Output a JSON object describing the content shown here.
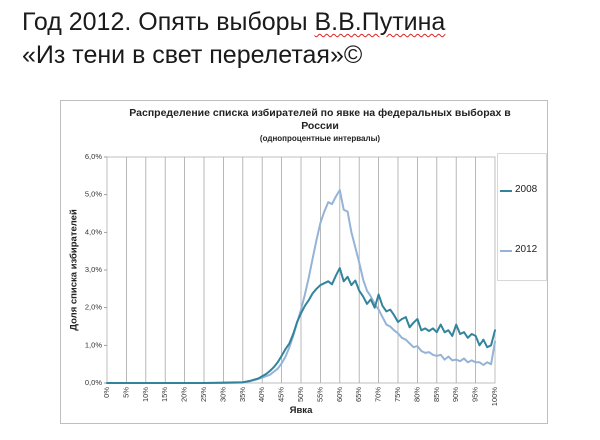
{
  "slide": {
    "title_line1_prefix": "Год 2012. Опять выборы ",
    "title_line1_name": "В.В.Путина",
    "title_line2": "«Из тени в свет перелетая»©"
  },
  "chart_data": {
    "type": "line",
    "title": "Распределение списка избирателей по явке на федеральных выборах в России",
    "subtitle": "(однопроцентные интервалы)",
    "xlabel": "Явка",
    "ylabel": "Доля списка избирателей",
    "xlim": [
      0,
      100
    ],
    "ylim": [
      0,
      6
    ],
    "x_ticks": [
      "0%",
      "5%",
      "10%",
      "15%",
      "20%",
      "25%",
      "30%",
      "35%",
      "40%",
      "45%",
      "50%",
      "55%",
      "60%",
      "65%",
      "70%",
      "75%",
      "80%",
      "85%",
      "90%",
      "95%",
      "100%"
    ],
    "y_ticks": [
      "0,0%",
      "1,0%",
      "2,0%",
      "3,0%",
      "4,0%",
      "5,0%",
      "6,0%"
    ],
    "grid": "vertical",
    "legend_position": "right",
    "series": [
      {
        "name": "2008",
        "color": "#31849b",
        "x": [
          0,
          5,
          10,
          15,
          20,
          25,
          30,
          35,
          36,
          37,
          38,
          39,
          40,
          41,
          42,
          43,
          44,
          45,
          46,
          47,
          48,
          49,
          50,
          51,
          52,
          53,
          54,
          55,
          56,
          57,
          58,
          59,
          60,
          61,
          62,
          63,
          64,
          65,
          66,
          67,
          68,
          69,
          70,
          71,
          72,
          73,
          74,
          75,
          76,
          77,
          78,
          79,
          80,
          81,
          82,
          83,
          84,
          85,
          86,
          87,
          88,
          89,
          90,
          91,
          92,
          93,
          94,
          95,
          96,
          97,
          98,
          99,
          100
        ],
        "y": [
          0,
          0,
          0,
          0,
          0,
          0,
          0.01,
          0.02,
          0.04,
          0.06,
          0.09,
          0.12,
          0.18,
          0.24,
          0.32,
          0.42,
          0.55,
          0.72,
          0.9,
          1.05,
          1.3,
          1.62,
          1.85,
          2.05,
          2.2,
          2.38,
          2.5,
          2.6,
          2.65,
          2.7,
          2.62,
          2.85,
          3.05,
          2.7,
          2.82,
          2.6,
          2.72,
          2.45,
          2.3,
          2.1,
          2.22,
          2.0,
          2.35,
          2.05,
          1.9,
          1.95,
          1.8,
          1.62,
          1.7,
          1.75,
          1.48,
          1.6,
          1.7,
          1.4,
          1.45,
          1.38,
          1.45,
          1.35,
          1.55,
          1.35,
          1.4,
          1.25,
          1.55,
          1.3,
          1.35,
          1.2,
          1.3,
          1.25,
          1.0,
          1.15,
          0.95,
          1.0,
          1.4
        ]
      },
      {
        "name": "2012",
        "color": "#95b3d7",
        "x": [
          0,
          5,
          10,
          15,
          20,
          25,
          30,
          35,
          36,
          37,
          38,
          39,
          40,
          41,
          42,
          43,
          44,
          45,
          46,
          47,
          48,
          49,
          50,
          51,
          52,
          53,
          54,
          55,
          56,
          57,
          58,
          59,
          60,
          61,
          62,
          63,
          64,
          65,
          66,
          67,
          68,
          69,
          70,
          71,
          72,
          73,
          74,
          75,
          76,
          77,
          78,
          79,
          80,
          81,
          82,
          83,
          84,
          85,
          86,
          87,
          88,
          89,
          90,
          91,
          92,
          93,
          94,
          95,
          96,
          97,
          98,
          99,
          100
        ],
        "y": [
          0,
          0,
          0,
          0,
          0,
          0,
          0,
          0.01,
          0.03,
          0.05,
          0.08,
          0.11,
          0.14,
          0.18,
          0.22,
          0.3,
          0.38,
          0.52,
          0.7,
          0.95,
          1.25,
          1.6,
          1.95,
          2.35,
          2.8,
          3.3,
          3.8,
          4.25,
          4.55,
          4.8,
          4.75,
          4.95,
          5.12,
          4.6,
          4.55,
          4.0,
          3.6,
          3.2,
          2.75,
          2.45,
          2.3,
          2.1,
          1.95,
          1.75,
          1.55,
          1.5,
          1.4,
          1.32,
          1.2,
          1.15,
          1.05,
          0.95,
          0.98,
          0.85,
          0.8,
          0.82,
          0.75,
          0.72,
          0.75,
          0.62,
          0.7,
          0.6,
          0.62,
          0.58,
          0.65,
          0.55,
          0.6,
          0.55,
          0.55,
          0.48,
          0.55,
          0.5,
          1.1
        ]
      }
    ]
  }
}
